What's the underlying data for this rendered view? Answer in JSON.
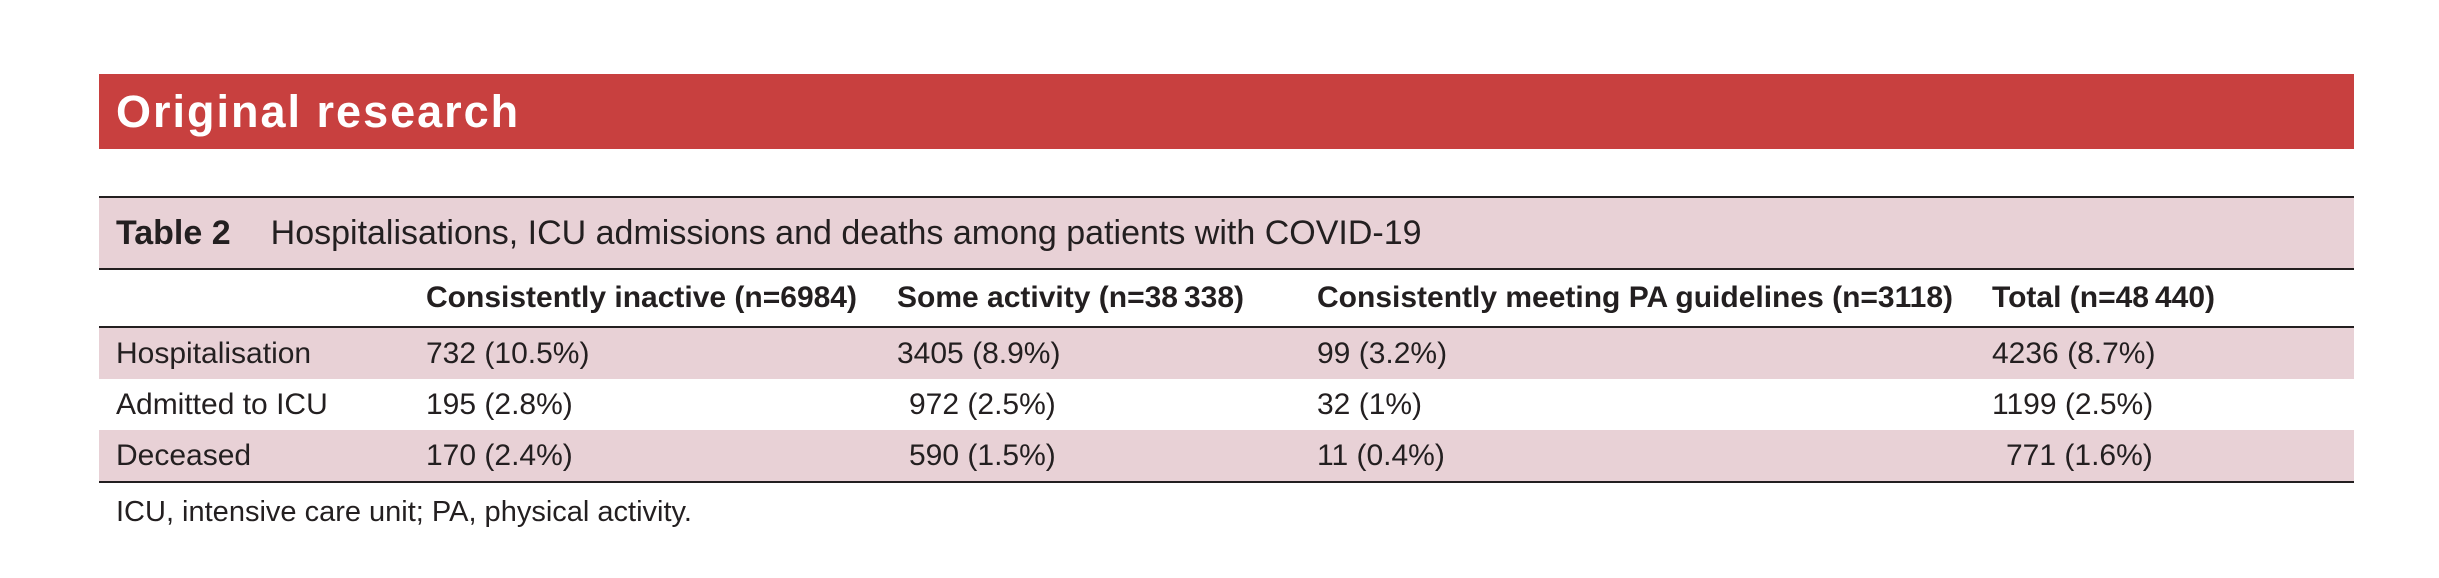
{
  "banner": {
    "title": "Original research"
  },
  "table": {
    "label": "Table 2",
    "caption": "Hospitalisations, ICU admissions and deaths among patients with COVID-19",
    "columns": [
      "",
      "Consistently inactive (n=6984)",
      "Some activity (n=38 338)",
      "Consistently meeting PA guidelines (n=3118)",
      "Total (n=48 440)"
    ],
    "rows": [
      [
        "Hospitalisation",
        "732 (10.5%)",
        "3405 (8.9%)",
        "99 (3.2%)",
        "4236 (8.7%)"
      ],
      [
        "Admitted to ICU",
        "195 (2.8%)",
        "972 (2.5%)",
        "32 (1%)",
        "1199 (2.5%)"
      ],
      [
        "Deceased",
        "170 (2.4%)",
        "590 (1.5%)",
        "11 (0.4%)",
        "771 (1.6%)"
      ]
    ],
    "footnote": "ICU, intensive care unit; PA, physical activity."
  }
}
